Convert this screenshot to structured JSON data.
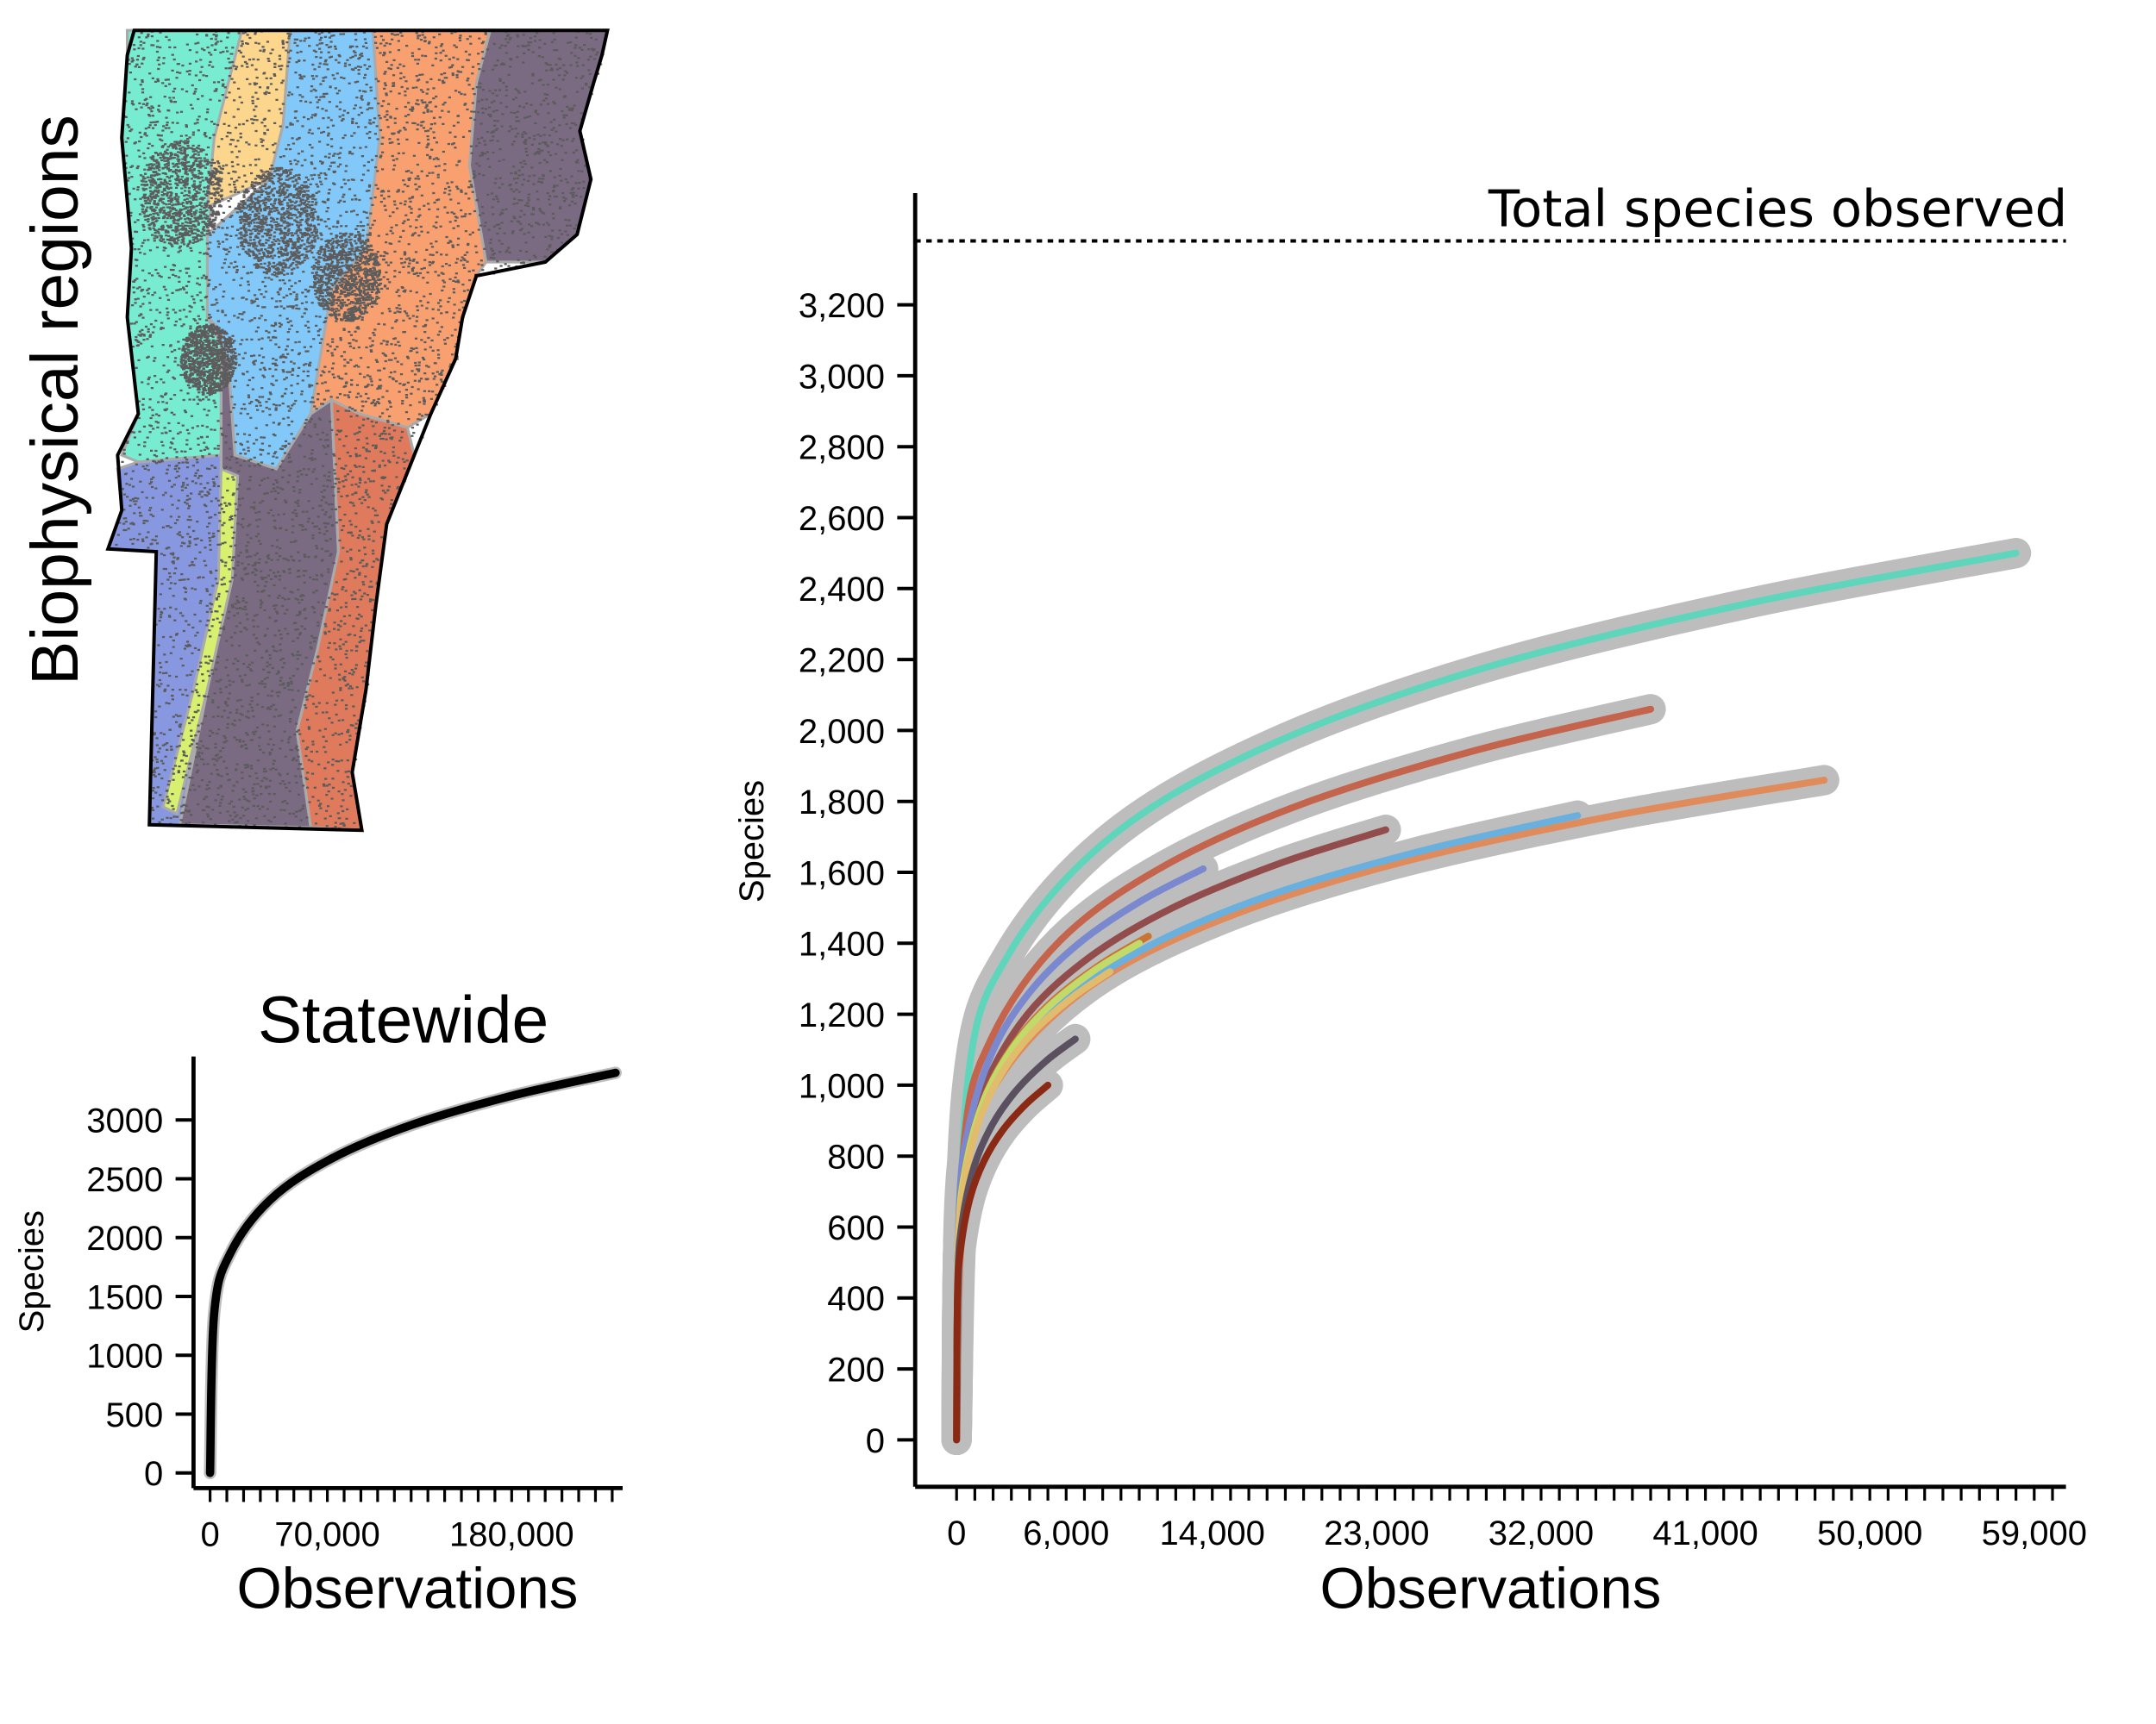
{
  "map": {
    "title": "Biophysical regions",
    "region_colors": [
      "#77ecd0",
      "#fcd68c",
      "#82c8f8",
      "#f8a070",
      "#7a6a82",
      "#7a6a82",
      "#e07a5c",
      "#8898e0",
      "#d8f070"
    ],
    "point_color": "#5c5c5c",
    "boundary_color": "#aaaaaa"
  },
  "chart_data": [
    {
      "type": "line",
      "title": "Statewide",
      "xlabel": "Observations",
      "ylabel": "Species",
      "xlim": [
        0,
        242000
      ],
      "ylim": [
        0,
        3400
      ],
      "x_tick_labels": [
        {
          "v": 0,
          "label": "0"
        },
        {
          "v": 70000,
          "label": "70,000"
        },
        {
          "v": 180000,
          "label": "180,000"
        }
      ],
      "x_minor_step": 10000,
      "y_ticks": [
        {
          "v": 0,
          "label": "0"
        },
        {
          "v": 500,
          "label": "500"
        },
        {
          "v": 1000,
          "label": "1000"
        },
        {
          "v": 1500,
          "label": "1500"
        },
        {
          "v": 2000,
          "label": "2000"
        },
        {
          "v": 2500,
          "label": "2500"
        },
        {
          "v": 3000,
          "label": "3000"
        }
      ],
      "grid": false,
      "series": [
        {
          "name": "Statewide",
          "color": "#000000",
          "band_color": "#bdbdbd",
          "x": [
            0,
            2420,
            12100,
            36300,
            72600,
            121000,
            181500,
            242000
          ],
          "y": [
            0,
            1353,
            1867,
            2326,
            2672,
            2961,
            3210,
            3400
          ]
        }
      ]
    },
    {
      "type": "line",
      "title": "",
      "xlabel": "Observations",
      "ylabel": "Species",
      "xlim": [
        0,
        61000
      ],
      "ylim": [
        0,
        3400
      ],
      "x_tick_labels": [
        {
          "v": 0,
          "label": "0"
        },
        {
          "v": 6000,
          "label": "6,000"
        },
        {
          "v": 14000,
          "label": "14,000"
        },
        {
          "v": 23000,
          "label": "23,000"
        },
        {
          "v": 32000,
          "label": "32,000"
        },
        {
          "v": 41000,
          "label": "41,000"
        },
        {
          "v": 50000,
          "label": "50,000"
        },
        {
          "v": 59000,
          "label": "59,000"
        }
      ],
      "x_minor_step": 1000,
      "y_ticks": [
        {
          "v": 0,
          "label": "0"
        },
        {
          "v": 200,
          "label": "200"
        },
        {
          "v": 400,
          "label": "400"
        },
        {
          "v": 600,
          "label": "600"
        },
        {
          "v": 800,
          "label": "800"
        },
        {
          "v": 1000,
          "label": "1,000"
        },
        {
          "v": 1200,
          "label": "1,200"
        },
        {
          "v": 1400,
          "label": "1,400"
        },
        {
          "v": 1600,
          "label": "1,600"
        },
        {
          "v": 1800,
          "label": "1,800"
        },
        {
          "v": 2000,
          "label": "2,000"
        },
        {
          "v": 2200,
          "label": "2,200"
        },
        {
          "v": 2400,
          "label": "2,400"
        },
        {
          "v": 2600,
          "label": "2,600"
        },
        {
          "v": 2800,
          "label": "2,800"
        },
        {
          "v": 3000,
          "label": "3,000"
        },
        {
          "v": 3200,
          "label": "3,200"
        }
      ],
      "reference_line": {
        "label": "Total species observed",
        "value": 3380,
        "style": "dotted"
      },
      "grid": false,
      "band_color": "#bdbdbd",
      "series": [
        {
          "color": "#5fd6bb",
          "x": [
            0,
            580,
            2900,
            8700,
            17400,
            29000,
            43500,
            58000
          ],
          "y": [
            0,
            995,
            1373,
            1710,
            1965,
            2178,
            2360,
            2500
          ]
        },
        {
          "color": "#c4644c",
          "x": [
            0,
            380,
            1900,
            5700,
            11400,
            19000,
            28500,
            38000
          ],
          "y": [
            0,
            820,
            1131,
            1409,
            1619,
            1794,
            1945,
            2060
          ]
        },
        {
          "color": "#e08b5c",
          "x": [
            0,
            475,
            2375,
            7125,
            14250,
            23750,
            35625,
            47500
          ],
          "y": [
            0,
            740,
            1021,
            1272,
            1462,
            1620,
            1756,
            1860
          ]
        },
        {
          "color": "#6ab0df",
          "x": [
            0,
            340,
            1700,
            5100,
            10200,
            17000,
            25500,
            34000
          ],
          "y": [
            0,
            700,
            966,
            1204,
            1383,
            1533,
            1661,
            1760
          ]
        },
        {
          "color": "#934c4c",
          "x": [
            0,
            235,
            1175,
            3525,
            7050,
            11750,
            17625,
            23500
          ],
          "y": [
            0,
            685,
            944,
            1176,
            1352,
            1498,
            1624,
            1720
          ]
        },
        {
          "color": "#7a88cf",
          "x": [
            0,
            135,
            675,
            2025,
            4050,
            6750,
            10125,
            13500
          ],
          "y": [
            0,
            641,
            884,
            1101,
            1265,
            1402,
            1520,
            1610
          ]
        },
        {
          "color": "#c87432",
          "x": [
            0,
            105,
            525,
            1575,
            3150,
            5250,
            7875,
            10500
          ],
          "y": [
            0,
            565,
            780,
            971,
            1116,
            1237,
            1340,
            1420
          ]
        },
        {
          "color": "#c2da6a",
          "x": [
            0,
            100,
            500,
            1500,
            3000,
            5000,
            7500,
            10000
          ],
          "y": [
            0,
            557,
            769,
            958,
            1100,
            1219,
            1322,
            1400
          ]
        },
        {
          "color": "#e0bc6c",
          "x": [
            0,
            84,
            420,
            1260,
            2520,
            4200,
            6300,
            8400
          ],
          "y": [
            0,
            525,
            725,
            903,
            1038,
            1150,
            1246,
            1320
          ]
        },
        {
          "color": "#5a5060",
          "x": [
            0,
            65,
            325,
            975,
            1950,
            3250,
            4875,
            6500
          ],
          "y": [
            0,
            450,
            620,
            773,
            888,
            984,
            1067,
            1130
          ]
        },
        {
          "color": "#8b2a14",
          "x": [
            0,
            50,
            250,
            750,
            1500,
            2500,
            3750,
            5000
          ],
          "y": [
            0,
            398,
            549,
            684,
            786,
            871,
            944,
            1000
          ]
        }
      ]
    }
  ]
}
